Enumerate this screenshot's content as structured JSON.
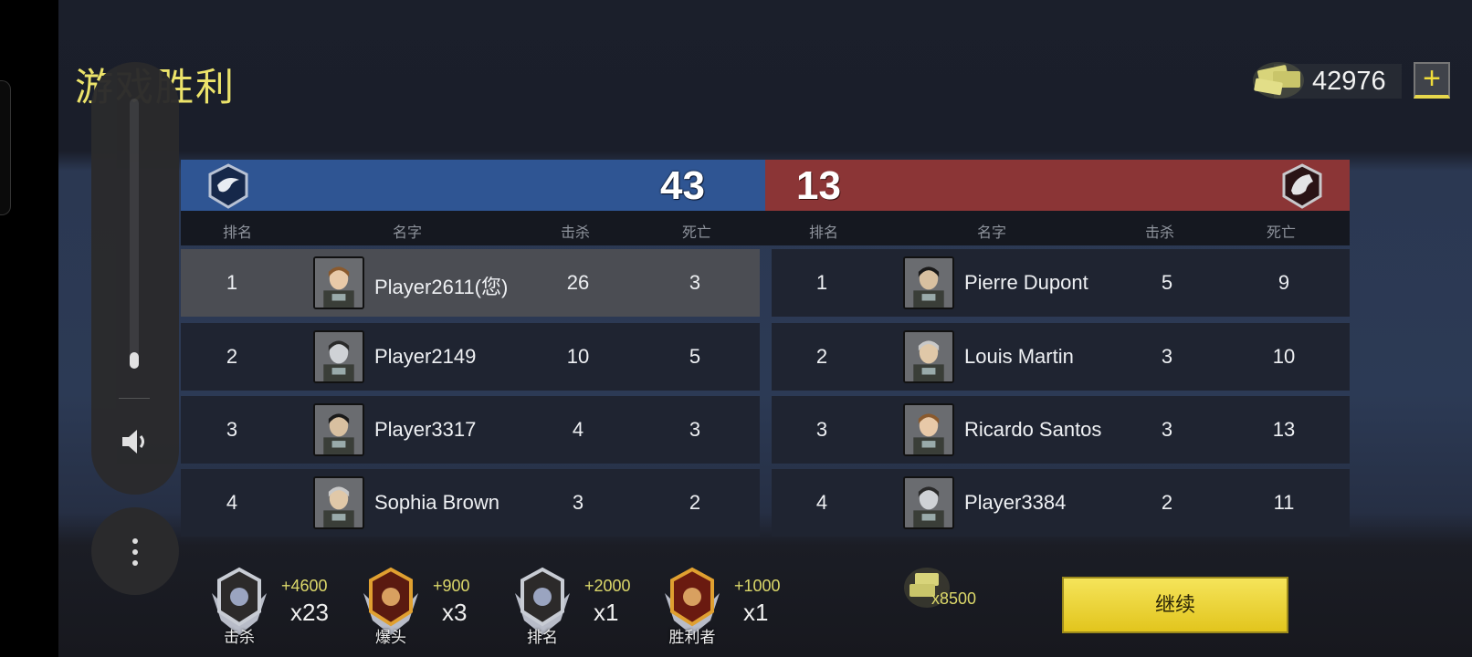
{
  "title": "游戏胜利",
  "currency": {
    "amount": "42976",
    "plus": "+"
  },
  "teams": [
    {
      "side": "blue",
      "score": "43",
      "color": "#2f5593",
      "emblem": "eagle-emblem-icon"
    },
    {
      "side": "red",
      "score": "13",
      "color": "#8b3536",
      "emblem": "wolf-emblem-icon"
    }
  ],
  "headers": {
    "rank": "排名",
    "name": "名字",
    "kills": "击杀",
    "deaths": "死亡"
  },
  "blue_players": [
    {
      "rank": "1",
      "name": "Player2611(您)",
      "kills": "26",
      "deaths": "3",
      "highlight": true
    },
    {
      "rank": "2",
      "name": "Player2149",
      "kills": "10",
      "deaths": "5"
    },
    {
      "rank": "3",
      "name": "Player3317",
      "kills": "4",
      "deaths": "3"
    },
    {
      "rank": "4",
      "name": "Sophia Brown",
      "kills": "3",
      "deaths": "2"
    }
  ],
  "red_players": [
    {
      "rank": "1",
      "name": "Pierre Dupont",
      "kills": "5",
      "deaths": "9"
    },
    {
      "rank": "2",
      "name": "Louis Martin",
      "kills": "3",
      "deaths": "10"
    },
    {
      "rank": "3",
      "name": "Ricardo Santos",
      "kills": "3",
      "deaths": "13"
    },
    {
      "rank": "4",
      "name": "Player3384",
      "kills": "2",
      "deaths": "11"
    }
  ],
  "rewards": [
    {
      "label": "击杀",
      "bonus": "+4600",
      "mult": "x23",
      "icon": "star-badge-icon"
    },
    {
      "label": "爆头",
      "bonus": "+900",
      "mult": "x3",
      "icon": "skull-badge-icon"
    },
    {
      "label": "排名",
      "bonus": "+2000",
      "mult": "x1",
      "icon": "podium-badge-icon"
    },
    {
      "label": "胜利者",
      "bonus": "+1000",
      "mult": "x1",
      "icon": "trophy-badge-icon"
    }
  ],
  "total": "x8500",
  "continue_label": "继续",
  "volume_level": 0.06
}
